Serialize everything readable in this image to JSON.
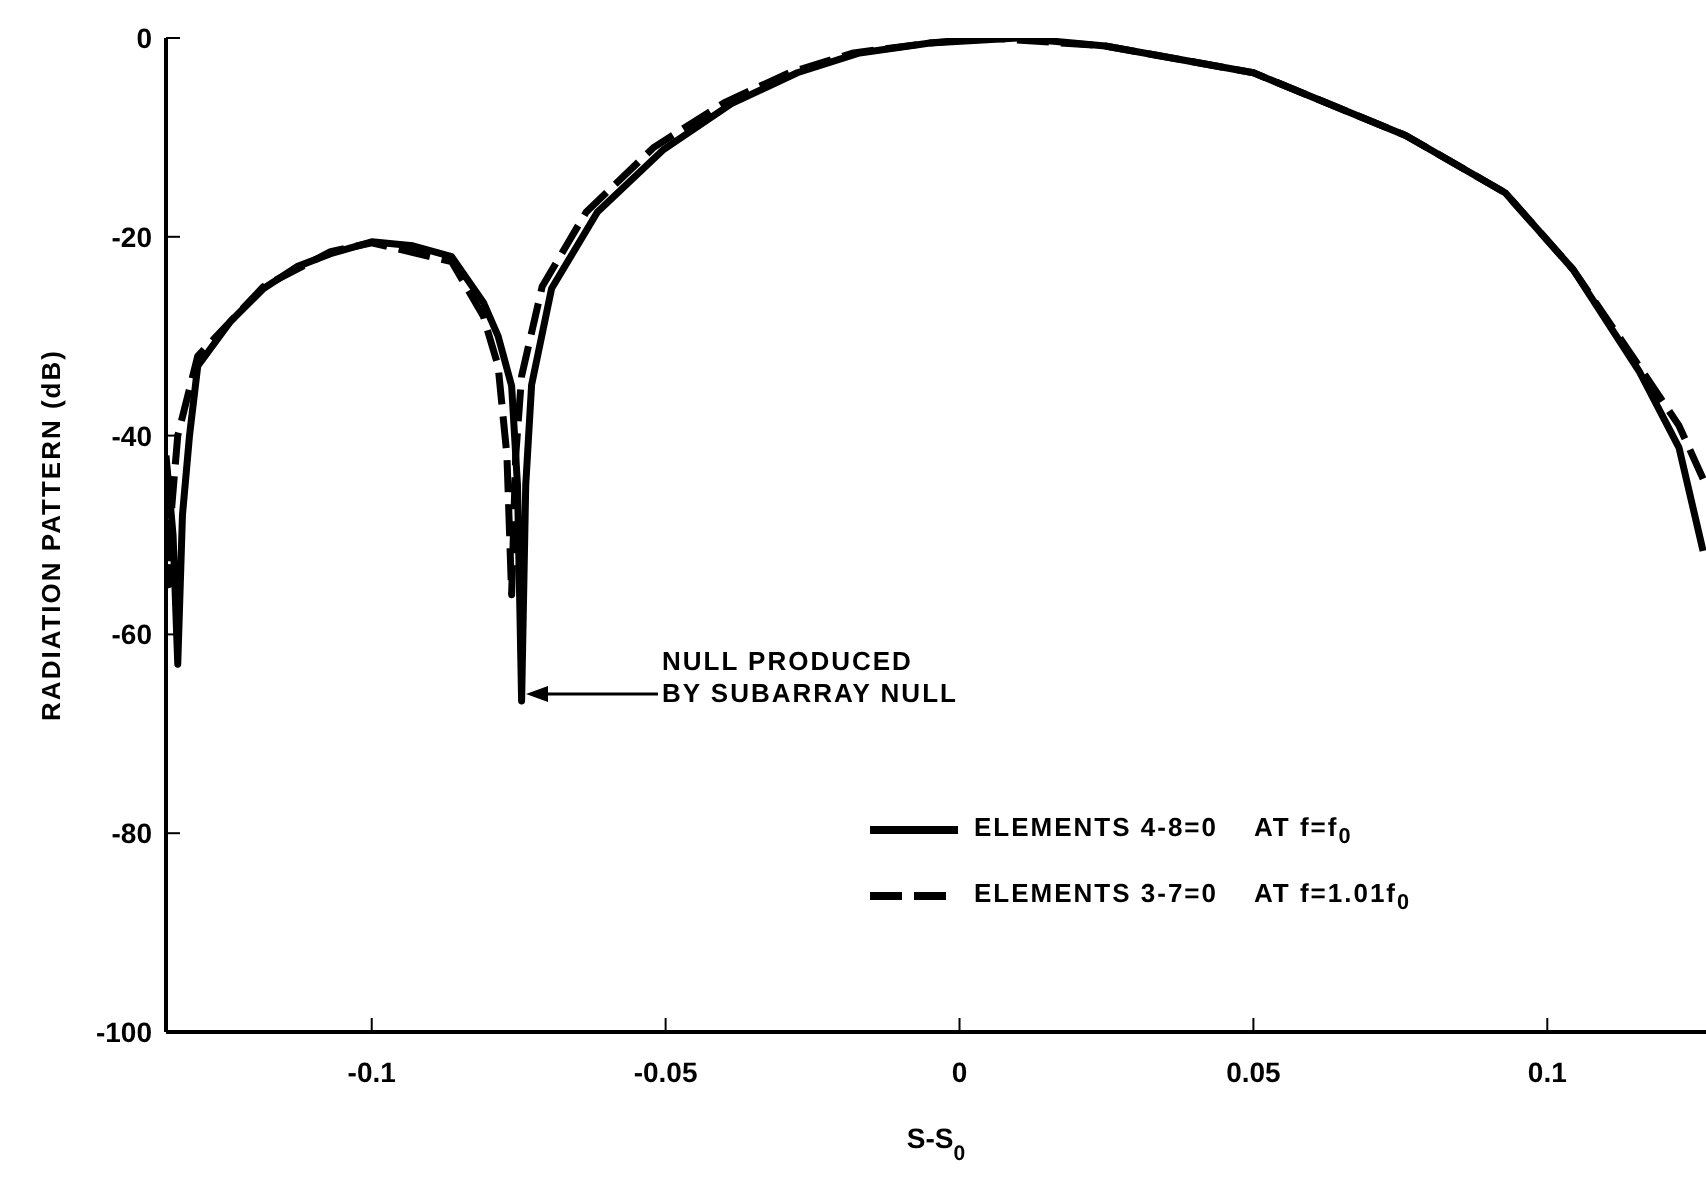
{
  "chart_data": {
    "type": "line",
    "xlabel": "S-S$_{0}$",
    "ylabel": "RADIATION PATTERN (dB)",
    "xlim": [
      -0.135,
      0.127
    ],
    "ylim": [
      -100,
      0
    ],
    "xticks": [
      -0.1,
      -0.05,
      0,
      0.05,
      0.1
    ],
    "yticks": [
      0,
      -20,
      -40,
      -60,
      -80,
      -100
    ],
    "grid": false,
    "legend": "bottom right",
    "marker": "none",
    "series": [
      {
        "name": "ELEMENTS 4-8=0    AT f=f$_{0}$",
        "color": "#000000",
        "line_style": "solid",
        "x": [
          -0.135,
          -0.1338,
          -0.133,
          -0.1322,
          -0.131,
          -0.1296,
          -0.124,
          -0.1184,
          -0.1127,
          -0.107,
          -0.1,
          -0.093,
          -0.0864,
          -0.081,
          -0.0785,
          -0.0762,
          -0.0752,
          -0.0745,
          -0.0738,
          -0.0728,
          -0.0694,
          -0.0616,
          -0.0503,
          -0.0388,
          -0.0276,
          -0.017,
          -0.005,
          0.01,
          0.0248,
          0.05,
          0.0759,
          0.0929,
          0.1044,
          0.1156,
          0.1224,
          0.1265
        ],
        "values": [
          -42,
          -50,
          -63,
          -48,
          -40,
          -33,
          -28.5,
          -25.2,
          -23,
          -21.7,
          -20.5,
          -20.9,
          -22,
          -26.6,
          -30,
          -35,
          -45,
          -66.7,
          -45,
          -34.9,
          -25.2,
          -17.5,
          -11.2,
          -6.6,
          -3.5,
          -1.5,
          -0.5,
          0,
          -0.8,
          -3.5,
          -9.8,
          -15.6,
          -23.3,
          -33.5,
          -41.2,
          -51.6
        ]
      },
      {
        "name": "ELEMENTS 3-7=0    AT f=1.01f$_{0}$",
        "color": "#000000",
        "line_style": "dashed",
        "x": [
          -0.135,
          -0.1345,
          -0.134,
          -0.133,
          -0.1296,
          -0.1184,
          -0.107,
          -0.1,
          -0.0864,
          -0.081,
          -0.0785,
          -0.077,
          -0.0762,
          -0.0755,
          -0.0745,
          -0.071,
          -0.0635,
          -0.052,
          -0.04,
          -0.029,
          -0.018,
          -0.005,
          0.005,
          0.0248,
          0.05,
          0.0759,
          0.0929,
          0.1044,
          0.1156,
          0.1224,
          0.127
        ],
        "values": [
          -45,
          -55,
          -47,
          -40,
          -32,
          -25,
          -21.5,
          -20.6,
          -22.5,
          -28,
          -33,
          -42,
          -56,
          -42,
          -34,
          -25,
          -17.5,
          -11,
          -6.5,
          -3.5,
          -1.5,
          -0.5,
          0,
          -0.8,
          -3.5,
          -9.8,
          -15.6,
          -23.3,
          -33,
          -39,
          -45
        ]
      }
    ],
    "annotations": [
      "NULL PRODUCED\nBY SUBARRAY NULL"
    ]
  }
}
